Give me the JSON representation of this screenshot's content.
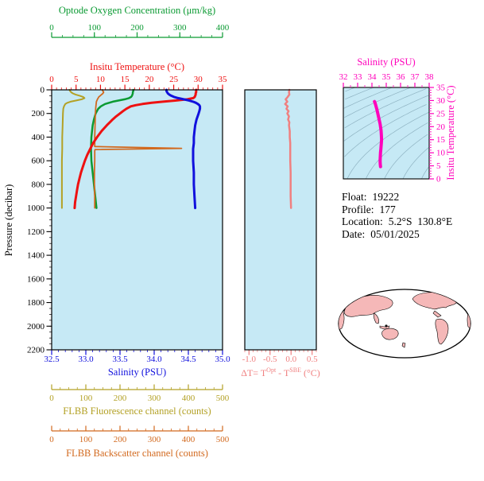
{
  "colors": {
    "plot_bg": "#c6e9f5",
    "temperature": "#ee1111",
    "salinity": "#1111dd",
    "oxygen": "#0a9a32",
    "fluorescence": "#b3a125",
    "backscatter": "#d2691e",
    "delta": "#f08080",
    "ts_curve": "#ff00bb",
    "contour": "#8fb3c2",
    "map_land": "#f5b8b8",
    "axis_black": "#000000"
  },
  "chart_data": [
    {
      "id": "profile-plot",
      "type": "line",
      "description": "Vertical profiles versus pressure",
      "pressure_axis": {
        "label": "Pressure (decibar)",
        "range": [
          0,
          2200
        ],
        "ticks": [
          0,
          200,
          400,
          600,
          800,
          1000,
          1200,
          1400,
          1600,
          1800,
          2000,
          2200
        ],
        "minor_step": 50,
        "direction": "increasing-down"
      },
      "x_axes": [
        {
          "id": "oxygen",
          "label": "Optode Oxygen Concentration (μm/kg)",
          "range": [
            0,
            400
          ],
          "ticks": [
            0,
            100,
            200,
            300,
            400
          ],
          "tick_labels": [
            "0",
            "100",
            "200",
            "300",
            "400"
          ],
          "minor_step": 25,
          "color_key": "oxygen",
          "position": "top-outer"
        },
        {
          "id": "temperature",
          "label": "Insitu Temperature (°C)",
          "range": [
            0,
            35
          ],
          "ticks": [
            0,
            5,
            10,
            15,
            20,
            25,
            30,
            35
          ],
          "tick_labels": [
            "0",
            "5",
            "10",
            "15",
            "20",
            "25",
            "30",
            "35"
          ],
          "minor_step": 1,
          "color_key": "temperature",
          "position": "top"
        },
        {
          "id": "salinity",
          "label": "Salinity (PSU)",
          "range": [
            32.5,
            35.0
          ],
          "ticks": [
            32.5,
            33.0,
            33.5,
            34.0,
            34.5,
            35.0
          ],
          "tick_labels": [
            "32.5",
            "33.0",
            "33.5",
            "34.0",
            "34.5",
            "35.0"
          ],
          "minor_step": 0.1,
          "color_key": "salinity",
          "position": "bottom"
        },
        {
          "id": "fluorescence",
          "label": "FLBB Fluorescence channel (counts)",
          "range": [
            0,
            500
          ],
          "ticks": [
            0,
            100,
            200,
            300,
            400,
            500
          ],
          "tick_labels": [
            "0",
            "100",
            "200",
            "300",
            "400",
            "500"
          ],
          "minor_step": 25,
          "color_key": "fluorescence",
          "position": "bottom-outer-1"
        },
        {
          "id": "backscatter",
          "label": "FLBB Backscatter channel (counts)",
          "range": [
            0,
            500
          ],
          "ticks": [
            0,
            100,
            200,
            300,
            400,
            500
          ],
          "tick_labels": [
            "0",
            "100",
            "200",
            "300",
            "400",
            "500"
          ],
          "minor_step": 25,
          "color_key": "backscatter",
          "position": "bottom-outer-2"
        }
      ],
      "series": [
        {
          "id": "oxygen",
          "name": "Optode Oxygen Concentration",
          "axis": "oxygen",
          "color_key": "oxygen",
          "stroke_width": 2.5,
          "pressure": [
            0,
            10,
            20,
            30,
            40,
            50,
            60,
            70,
            80,
            90,
            100,
            120,
            140,
            160,
            200,
            250,
            300,
            400,
            500,
            600,
            700,
            800,
            900,
            1000
          ],
          "values": [
            191,
            191,
            190,
            190,
            189,
            188,
            186,
            181,
            171,
            157,
            143,
            125,
            115,
            109,
            103,
            99,
            96,
            93,
            92,
            93,
            96,
            99,
            102,
            105
          ]
        },
        {
          "id": "fluorescence",
          "name": "FLBB Fluorescence channel",
          "axis": "fluorescence",
          "color_key": "fluorescence",
          "stroke_width": 2,
          "pressure": [
            0,
            10,
            20,
            30,
            40,
            50,
            60,
            70,
            80,
            90,
            100,
            110,
            120,
            140,
            160,
            200,
            300,
            400,
            500,
            600,
            700,
            800,
            900,
            1000
          ],
          "values": [
            52,
            54,
            57,
            62,
            70,
            82,
            92,
            96,
            88,
            72,
            55,
            46,
            40,
            36,
            34,
            33,
            32,
            31,
            31,
            30,
            30,
            30,
            30,
            30
          ]
        },
        {
          "id": "backscatter",
          "name": "FLBB Backscatter channel",
          "axis": "backscatter",
          "color_key": "backscatter",
          "stroke_width": 1.8,
          "pressure": [
            0,
            10,
            20,
            30,
            40,
            50,
            60,
            80,
            100,
            150,
            200,
            300,
            400,
            480,
            495,
            505,
            515,
            600,
            700,
            800,
            900,
            1000
          ],
          "values": [
            148,
            150,
            152,
            150,
            146,
            142,
            138,
            134,
            131,
            129,
            128,
            127,
            126,
            126,
            380,
            127,
            126,
            126,
            125,
            125,
            126,
            126
          ]
        },
        {
          "id": "temperature",
          "name": "Insitu Temperature",
          "axis": "temperature",
          "color_key": "temperature",
          "stroke_width": 3,
          "pressure": [
            0,
            10,
            20,
            30,
            40,
            50,
            60,
            70,
            80,
            90,
            100,
            110,
            120,
            130,
            140,
            160,
            180,
            200,
            225,
            250,
            275,
            300,
            350,
            400,
            450,
            500,
            550,
            600,
            650,
            700,
            750,
            800,
            850,
            900,
            950,
            1000
          ],
          "values": [
            29.6,
            29.6,
            29.6,
            29.5,
            29.5,
            29.4,
            29.3,
            29.0,
            27.8,
            25.5,
            22.8,
            20.5,
            18.6,
            17.2,
            16.2,
            15.3,
            14.6,
            14.0,
            13.2,
            12.5,
            11.9,
            11.3,
            10.2,
            9.3,
            8.5,
            7.9,
            7.3,
            6.8,
            6.4,
            6.0,
            5.7,
            5.4,
            5.2,
            5.0,
            4.8,
            4.7
          ]
        },
        {
          "id": "salinity",
          "name": "Salinity",
          "axis": "salinity",
          "color_key": "salinity",
          "stroke_width": 3,
          "pressure": [
            0,
            10,
            20,
            30,
            40,
            50,
            60,
            70,
            80,
            90,
            100,
            110,
            120,
            130,
            140,
            160,
            180,
            200,
            250,
            300,
            350,
            400,
            450,
            500,
            600,
            700,
            800,
            900,
            1000
          ],
          "values": [
            34.18,
            34.18,
            34.19,
            34.2,
            34.22,
            34.25,
            34.29,
            34.35,
            34.43,
            34.51,
            34.57,
            34.61,
            34.64,
            34.66,
            34.67,
            34.67,
            34.66,
            34.65,
            34.62,
            34.6,
            34.59,
            34.58,
            34.58,
            34.57,
            34.57,
            34.58,
            34.58,
            34.59,
            34.6
          ]
        }
      ]
    },
    {
      "id": "delta-t-plot",
      "type": "line",
      "x_axis": {
        "label_parts": {
          "prefix": "ΔT= T",
          "sup1": "Opt",
          "mid": " - T",
          "sup2": "SBE",
          "suffix": " (°C)"
        },
        "range": [
          -1.1,
          0.6
        ],
        "ticks": [
          -1.0,
          -0.5,
          0.0,
          0.5
        ],
        "tick_labels": [
          "-1.0",
          "-0.5",
          "0.0",
          "0.5"
        ],
        "minor_step": 0.1,
        "color_key": "delta"
      },
      "series": [
        {
          "id": "delta-t",
          "name": "T Opt minus T SBE",
          "color_key": "delta",
          "stroke_width": 2.5,
          "pressure": [
            0,
            20,
            40,
            60,
            80,
            100,
            120,
            140,
            160,
            180,
            200,
            225,
            250,
            275,
            300,
            350,
            400,
            450,
            500,
            600,
            700,
            800,
            900,
            1000
          ],
          "values": [
            -0.04,
            -0.05,
            -0.04,
            -0.08,
            -0.13,
            -0.09,
            -0.14,
            -0.08,
            -0.11,
            -0.06,
            -0.09,
            -0.05,
            -0.07,
            -0.04,
            -0.05,
            -0.03,
            -0.03,
            -0.02,
            -0.02,
            -0.02,
            -0.01,
            -0.01,
            -0.01,
            0.0
          ]
        }
      ]
    },
    {
      "id": "ts-diagram",
      "type": "line",
      "x_axis": {
        "label": "Salinity (PSU)",
        "range": [
          32,
          38
        ],
        "ticks": [
          32,
          33,
          34,
          35,
          36,
          37,
          38
        ],
        "tick_labels": [
          "32",
          "33",
          "34",
          "35",
          "36",
          "37",
          "38"
        ],
        "minor_step": 0.5,
        "color_key": "ts_curve"
      },
      "y_axis": {
        "label": "Insitu Temperature (°C)",
        "range": [
          0,
          35
        ],
        "ticks": [
          0,
          5,
          10,
          15,
          20,
          25,
          30,
          35
        ],
        "tick_labels": [
          "0",
          "5",
          "10",
          "15",
          "20",
          "25",
          "30",
          "35"
        ],
        "minor_step": 1,
        "color_key": "ts_curve"
      },
      "isopycnal_contours": {
        "sigma_values": [
          19,
          20,
          21,
          22,
          23,
          24,
          25,
          26,
          27,
          28,
          29,
          30
        ]
      },
      "series": [
        {
          "id": "ts-curve",
          "name": "T-S curve",
          "color_key": "ts_curve",
          "stroke_width": 4,
          "salinity": [
            34.18,
            34.2,
            34.25,
            34.35,
            34.45,
            34.57,
            34.64,
            34.66,
            34.67,
            34.66,
            34.64,
            34.62,
            34.6,
            34.59,
            34.58,
            34.57,
            34.58,
            34.59,
            34.6
          ],
          "temperature": [
            29.6,
            29.4,
            28.5,
            26.5,
            24.0,
            21.0,
            18.5,
            16.5,
            15.0,
            14.0,
            12.5,
            11.3,
            10.2,
            9.0,
            7.9,
            6.8,
            6.0,
            5.2,
            4.7
          ]
        }
      ]
    }
  ],
  "info": {
    "lines": [
      {
        "label": "Float:",
        "value": "19222"
      },
      {
        "label": "Profile:",
        "value": "177"
      },
      {
        "label": "Location:",
        "value": "5.2°S  130.8°E"
      },
      {
        "label": "Date:",
        "value": "05/01/2025"
      }
    ]
  }
}
